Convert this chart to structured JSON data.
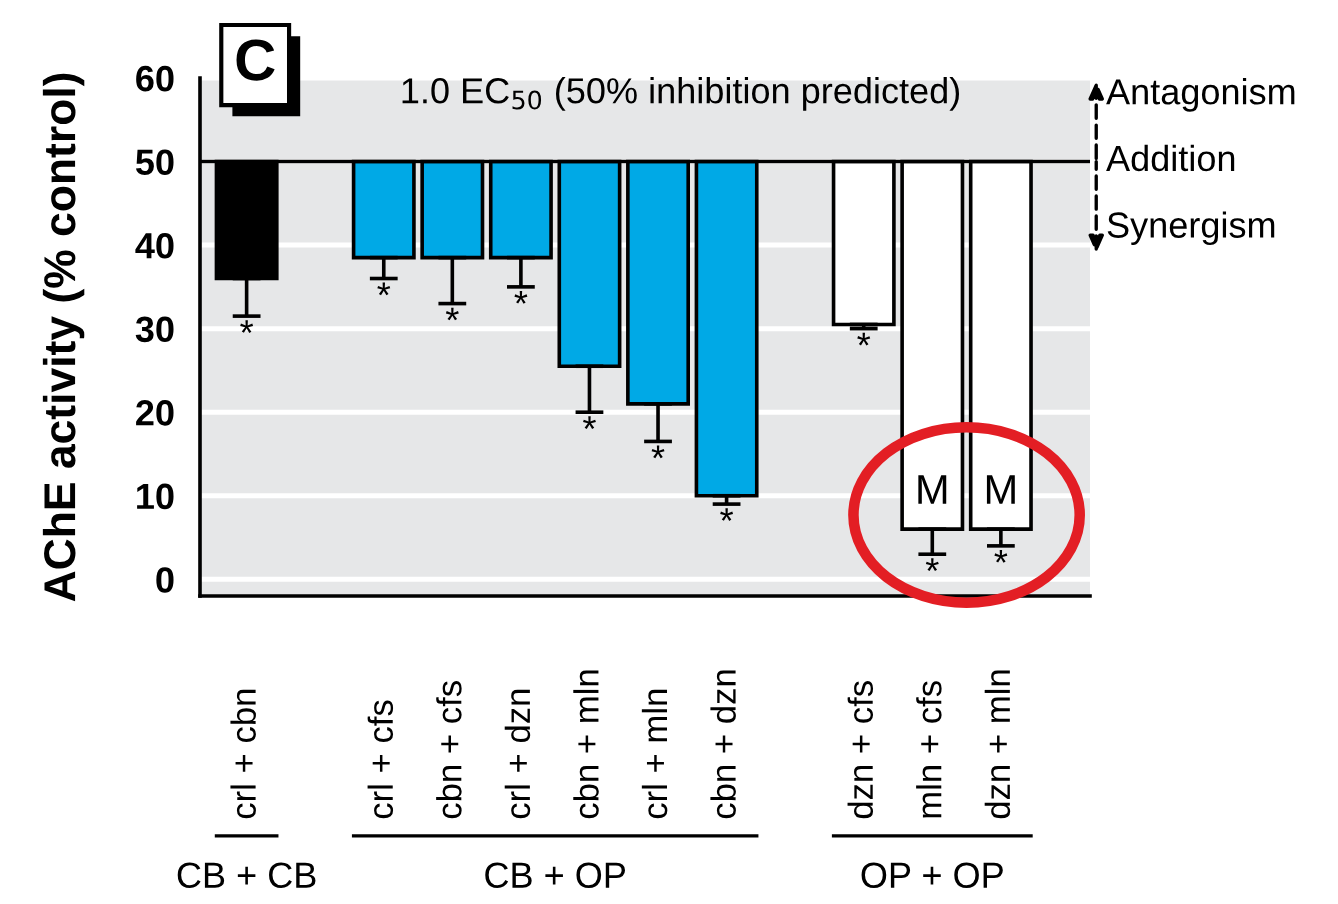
{
  "chart_data": {
    "type": "bar",
    "ylabel": "AChE activity (% control)",
    "categories": [
      "crl + cbn",
      null,
      "crl + cfs",
      "cbn + cfs",
      "crl + dzn",
      "cbn + mln",
      "crl + mln",
      "cbn + dzn",
      null,
      "dzn + cfs",
      "mln + cfs",
      "dzn + mln"
    ],
    "base": [
      50,
      null,
      50,
      50,
      50,
      50,
      50,
      50,
      null,
      50,
      50,
      50
    ],
    "values": [
      -14,
      null,
      -11.5,
      -11.5,
      -11.5,
      -24.5,
      -29,
      -40,
      null,
      -19.5,
      -44,
      -44
    ],
    "colors": [
      "#000000",
      null,
      "#00a9e6",
      "#00a9e6",
      "#00a9e6",
      "#00a9e6",
      "#00a9e6",
      "#00a9e6",
      null,
      "#ffffff",
      "#ffffff",
      "#ffffff"
    ],
    "errors": [
      [
        31.5,
        36
      ],
      null,
      [
        36,
        38.5
      ],
      [
        33,
        38.5
      ],
      [
        35,
        38.5
      ],
      [
        20,
        25.5
      ],
      [
        16.5,
        21
      ],
      [
        9,
        10
      ],
      null,
      [
        30,
        30.5
      ],
      [
        3,
        6
      ],
      [
        4,
        6
      ]
    ],
    "ylim": [
      -2,
      60
    ],
    "yticks": [
      0,
      10,
      20,
      30,
      40,
      50,
      60
    ],
    "grid": "y",
    "ref_lines": [
      {
        "axis": "y",
        "value": 50,
        "label": "Addition",
        "color": "#000000"
      }
    ],
    "annotations": [
      "C",
      "1.0 EC$_{50}$ (50% inhibition predicted)",
      "Antagonism",
      "Synergism",
      "CB + CB",
      "CB + OP",
      "OP + OP",
      {
        "text": "M",
        "x": "mln + cfs",
        "y": 6
      },
      {
        "text": "M",
        "x": "dzn + mln",
        "y": 6
      },
      {
        "text": "*",
        "x": "crl + cbn",
        "y": 31.5
      },
      {
        "text": "*",
        "x": "crl + cfs",
        "y": 36
      },
      {
        "text": "*",
        "x": "cbn + cfs",
        "y": 33
      },
      {
        "text": "*",
        "x": "crl + dzn",
        "y": 35
      },
      {
        "text": "*",
        "x": "cbn + mln",
        "y": 20
      },
      {
        "text": "*",
        "x": "crl + mln",
        "y": 16.5
      },
      {
        "text": "*",
        "x": "cbn + dzn",
        "y": 9
      },
      {
        "text": "*",
        "x": "dzn + cfs",
        "y": 30
      },
      {
        "text": "*",
        "x": "mln + cfs",
        "y": 3
      },
      {
        "text": "*",
        "x": "dzn + mln",
        "y": 4
      }
    ]
  }
}
